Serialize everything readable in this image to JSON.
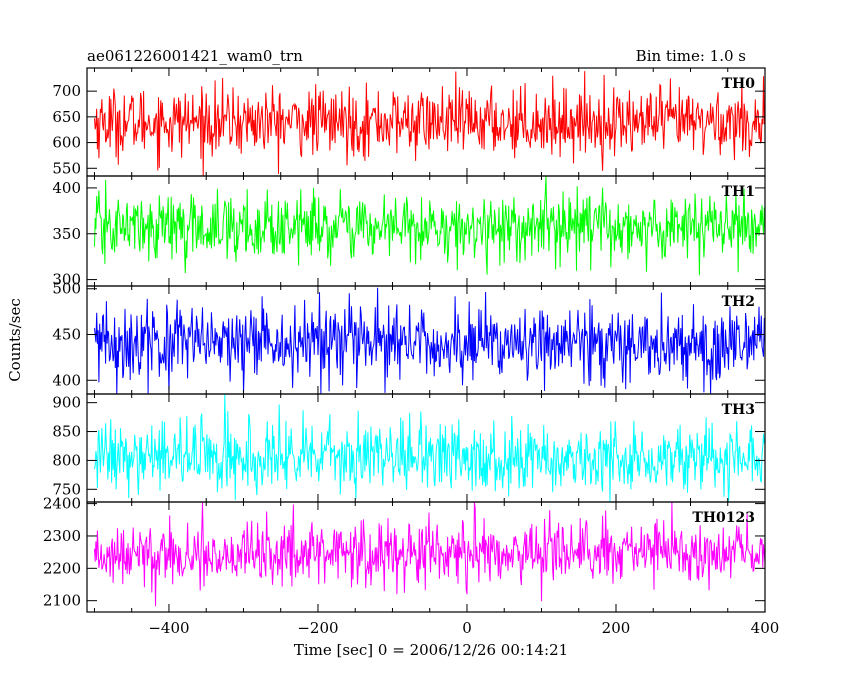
{
  "header": {
    "title": "ae061226001421_wam0_trn",
    "bin_time": "Bin time: 1.0 s"
  },
  "chart_data": [
    {
      "type": "line",
      "series": [
        {
          "name": "TH0",
          "color": "#ff0000",
          "mean": 640,
          "sd": 33,
          "n": 900
        }
      ],
      "ylim": [
        535,
        745
      ],
      "yticks": [
        550,
        600,
        650,
        700
      ],
      "ytick_labels": [
        "550",
        "600",
        "650",
        "700"
      ],
      "xlim": [
        -510,
        400
      ]
    },
    {
      "type": "line",
      "series": [
        {
          "name": "TH1",
          "color": "#00ff00",
          "mean": 357,
          "sd": 18,
          "n": 900
        }
      ],
      "ylim": [
        293,
        413
      ],
      "yticks": [
        300,
        350,
        400
      ],
      "ytick_labels": [
        "300",
        "350",
        "400"
      ],
      "xlim": [
        -510,
        400
      ]
    },
    {
      "type": "line",
      "series": [
        {
          "name": "TH2",
          "color": "#0000ff",
          "mean": 440,
          "sd": 21,
          "n": 900
        }
      ],
      "ylim": [
        385,
        503
      ],
      "yticks": [
        400,
        450,
        500
      ],
      "ytick_labels": [
        "400",
        "450",
        "500"
      ],
      "xlim": [
        -510,
        400
      ]
    },
    {
      "type": "line",
      "series": [
        {
          "name": "TH3",
          "color": "#00ffff",
          "mean": 805,
          "sd": 31,
          "n": 900
        }
      ],
      "ylim": [
        728,
        915
      ],
      "yticks": [
        750,
        800,
        850,
        900
      ],
      "ytick_labels": [
        "750",
        "800",
        "850",
        "900"
      ],
      "xlim": [
        -510,
        400
      ]
    },
    {
      "type": "line",
      "series": [
        {
          "name": "TH0123",
          "color": "#ff00ff",
          "mean": 2245,
          "sd": 50,
          "n": 900
        }
      ],
      "ylim": [
        2065,
        2405
      ],
      "yticks": [
        2100,
        2200,
        2300,
        2400
      ],
      "ytick_labels": [
        "2100",
        "2200",
        "2300",
        "2400"
      ],
      "xlim": [
        -510,
        400
      ],
      "xticks": [
        -400,
        -200,
        0,
        200,
        400
      ],
      "xtick_labels": [
        "−400",
        "−200",
        "0",
        "200",
        "400"
      ],
      "x_range": [
        -500,
        400
      ]
    }
  ],
  "axes": {
    "xlabel": "Time [sec] 0 = 2006/12/26 00:14:21",
    "ylabel": "Counts/sec"
  }
}
